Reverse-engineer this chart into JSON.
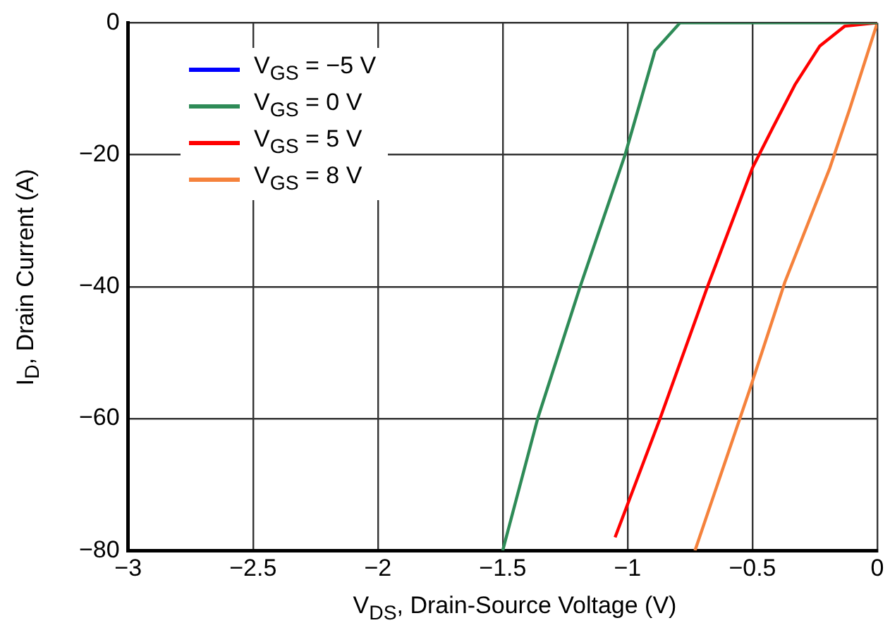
{
  "chart_data": {
    "type": "line",
    "xlabel": "V$_{DS}$, Drain-Source Voltage (V)",
    "ylabel": "I$_{D}$, Drain Current (A)",
    "xlim": [
      -3,
      0
    ],
    "ylim": [
      -80,
      0
    ],
    "xticks": [
      {
        "value": -3,
        "label": "−3"
      },
      {
        "value": -2.5,
        "label": "−2.5"
      },
      {
        "value": -2,
        "label": "−2"
      },
      {
        "value": -1.5,
        "label": "−1.5"
      },
      {
        "value": -1,
        "label": "−1"
      },
      {
        "value": -0.5,
        "label": "−0.5"
      },
      0
    ],
    "yticks": [
      {
        "value": -80,
        "label": "−80"
      },
      {
        "value": -60,
        "label": "−60"
      },
      {
        "value": -40,
        "label": "−40"
      },
      {
        "value": -20,
        "label": "−20"
      },
      0
    ],
    "grid": true,
    "legend": "top left",
    "marker": "none",
    "line_style": "solid",
    "series": [
      {
        "name": "V$_{GS}$ = −5 V",
        "color": "#0000ff"
      },
      {
        "name": "V$_{GS}$ = 0 V",
        "color": "#2e8b57",
        "x": [
          -1.5,
          -1.36,
          -1.19,
          -1.01,
          -0.89,
          -0.79,
          0
        ],
        "values": [
          -80,
          -60,
          -40,
          -20,
          -4.2,
          0,
          0
        ]
      },
      {
        "name": "V$_{GS}$ = 5 V",
        "color": "#ff0000",
        "x": [
          -1.05,
          -0.87,
          -0.68,
          -0.5,
          -0.42,
          -0.33,
          -0.23,
          -0.13,
          0
        ],
        "values": [
          -78,
          -60,
          -40,
          -22,
          -16,
          -9.4,
          -3.5,
          -0.5,
          0
        ]
      },
      {
        "name": "V$_{GS}$ = 8 V",
        "color": "#f5823c",
        "x": [
          -0.73,
          -0.51,
          -0.37,
          -0.19,
          -0.11,
          0
        ],
        "values": [
          -80,
          -55.5,
          -39.3,
          -22,
          -13,
          0
        ]
      }
    ]
  }
}
